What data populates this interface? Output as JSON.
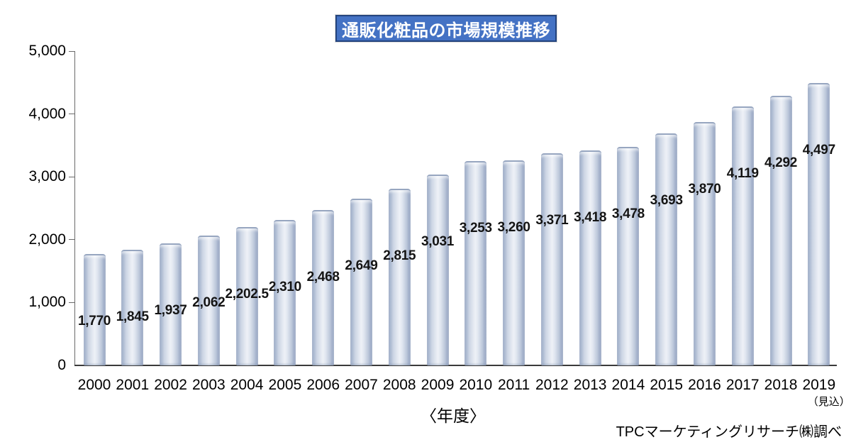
{
  "chart_data": {
    "type": "bar",
    "title": "通販化粧品の市場規模推移",
    "categories": [
      "2000",
      "2001",
      "2002",
      "2003",
      "2004",
      "2005",
      "2006",
      "2007",
      "2008",
      "2009",
      "2010",
      "2011",
      "2012",
      "2013",
      "2014",
      "2015",
      "2016",
      "2017",
      "2018",
      "2019"
    ],
    "values": [
      1770,
      1845,
      1937,
      2062,
      2202.5,
      2310,
      2468,
      2649,
      2815,
      3031,
      3253,
      3260,
      3371,
      3418,
      3478,
      3693,
      3870,
      4119,
      4292,
      4497
    ],
    "data_labels": [
      "1,770",
      "1,845",
      "1,937",
      "2,062",
      "2,202.5",
      "2,310",
      "2,468",
      "2,649",
      "2,815",
      "3,031",
      "3,253",
      "3,260",
      "3,371",
      "3,418",
      "3,478",
      "3,693",
      "3,870",
      "4,119",
      "4,292",
      "4,497"
    ],
    "ylim": [
      0,
      5000
    ],
    "ytick_values": [
      0,
      1000,
      2000,
      3000,
      4000,
      5000
    ],
    "ytick_labels": [
      "0",
      "1,000",
      "2,000",
      "3,000",
      "4,000",
      "5,000"
    ],
    "xlabel": "〈年度〉",
    "ylabel": "",
    "last_category_note": "（見込）",
    "source": "TPCマーケティングリサーチ㈱調べ",
    "grid": false,
    "legend": "none",
    "colors": {
      "title_background": "#4472c4",
      "title_border": "#24447e",
      "title_text": "#ffffff",
      "bar_edge": "#93a3c1",
      "bar_highlight": "#eef1f7",
      "axis": "#3a3a3a",
      "text": "#000000"
    }
  }
}
